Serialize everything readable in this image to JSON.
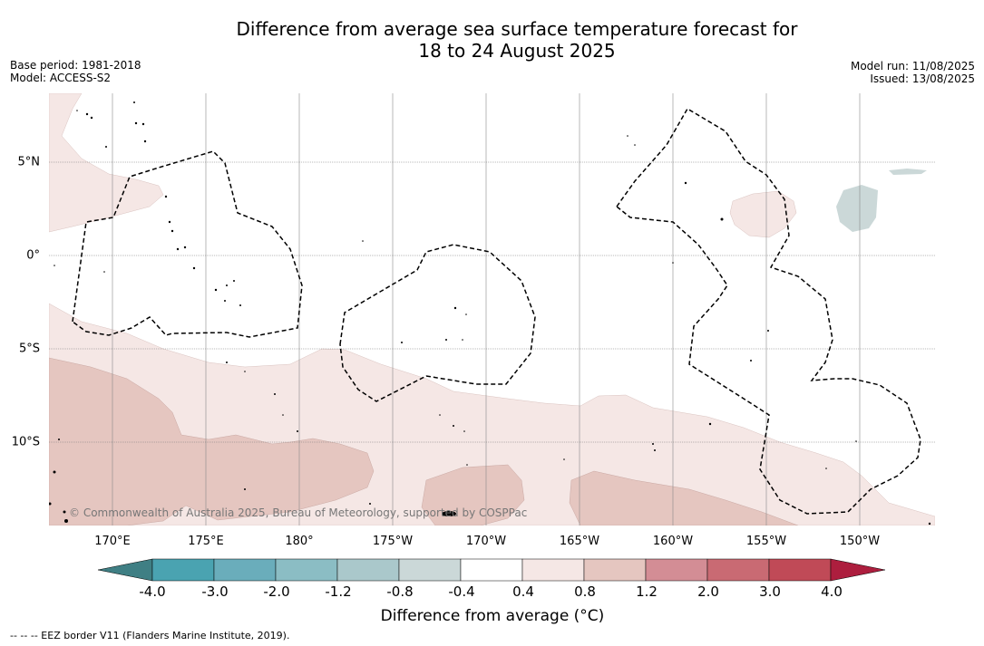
{
  "title_line1": "Difference from average sea surface temperature forecast for",
  "title_line2": "18 to 24 August 2025",
  "base_period": "Base period: 1981-2018",
  "model": "Model: ACCESS-S2",
  "model_run": "Model run: 11/08/2025",
  "issued": "Issued: 13/08/2025",
  "copyright": "© Commonwealth of Australia 2025, Bureau of Meteorology, supported by COSPPac",
  "footnote": "--  --  -- EEZ border V11 (Flanders Marine Institute, 2019).",
  "lon_labels": [
    "170°E",
    "175°E",
    "180°",
    "175°W",
    "170°W",
    "165°W",
    "160°W",
    "155°W",
    "150°W"
  ],
  "lat_labels": [
    "5°N",
    "0°",
    "5°S",
    "10°S"
  ],
  "colorbar": {
    "label": "Difference from average (°C)",
    "ticks": [
      "-4.0",
      "-3.0",
      "-2.0",
      "-1.2",
      "-0.8",
      "-0.4",
      "0.4",
      "0.8",
      "1.2",
      "2.0",
      "3.0",
      "4.0"
    ],
    "colors": [
      "#3f7f84",
      "#4aa3b1",
      "#6aadbb",
      "#8bbdc4",
      "#aac8cb",
      "#cbd8d8",
      "#ffffff",
      "#f5e7e5",
      "#e5c6c0",
      "#d38d95",
      "#c96a73",
      "#c04a57",
      "#ad1e3e"
    ]
  }
}
